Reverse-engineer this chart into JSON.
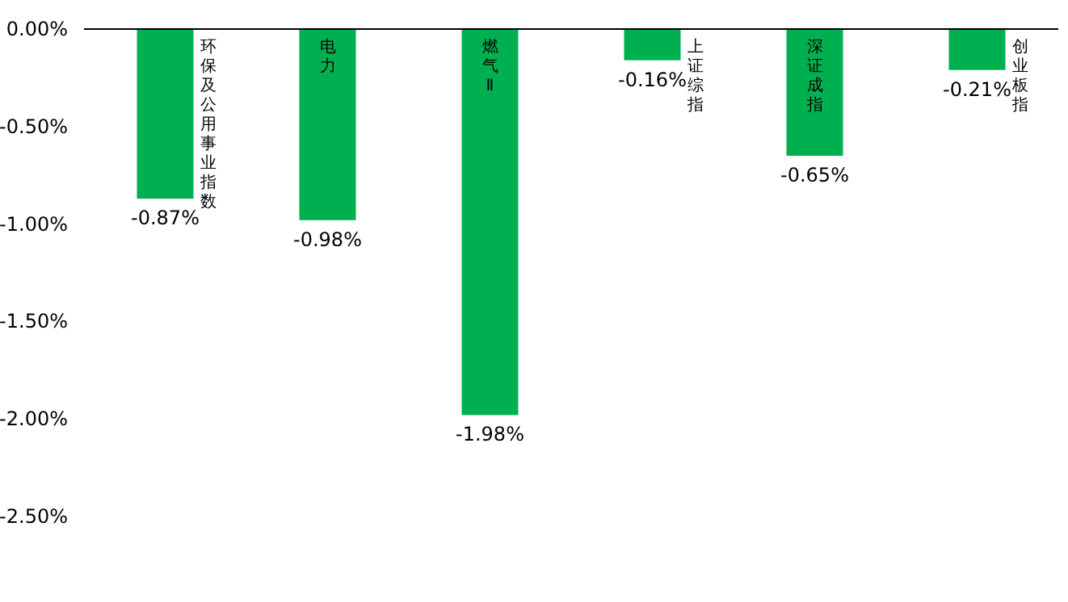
{
  "chart_data": {
    "type": "bar",
    "categories": [
      "环保及公用事业指数",
      "电力",
      "燃气Ⅱ",
      "上证综指",
      "深证成指",
      "创业板指"
    ],
    "values": [
      -0.87,
      -0.98,
      -1.98,
      -0.16,
      -0.65,
      -0.21
    ],
    "color": "#00b050",
    "value_labels": [
      "-0.87%",
      "-0.98%",
      "-1.98%",
      "-0.16%",
      "-0.65%",
      "-0.21%"
    ],
    "ylim": [
      -2.5,
      0
    ],
    "yticks": [
      {
        "value": 0,
        "label": "0.00%"
      },
      {
        "value": -0.5,
        "label": "-0.50%"
      },
      {
        "value": -1,
        "label": "-1.00%"
      },
      {
        "value": -1.5,
        "label": "-1.50%"
      },
      {
        "value": -2,
        "label": "-2.00%"
      },
      {
        "value": -2.5,
        "label": "-2.50%"
      }
    ],
    "grid": false
  }
}
